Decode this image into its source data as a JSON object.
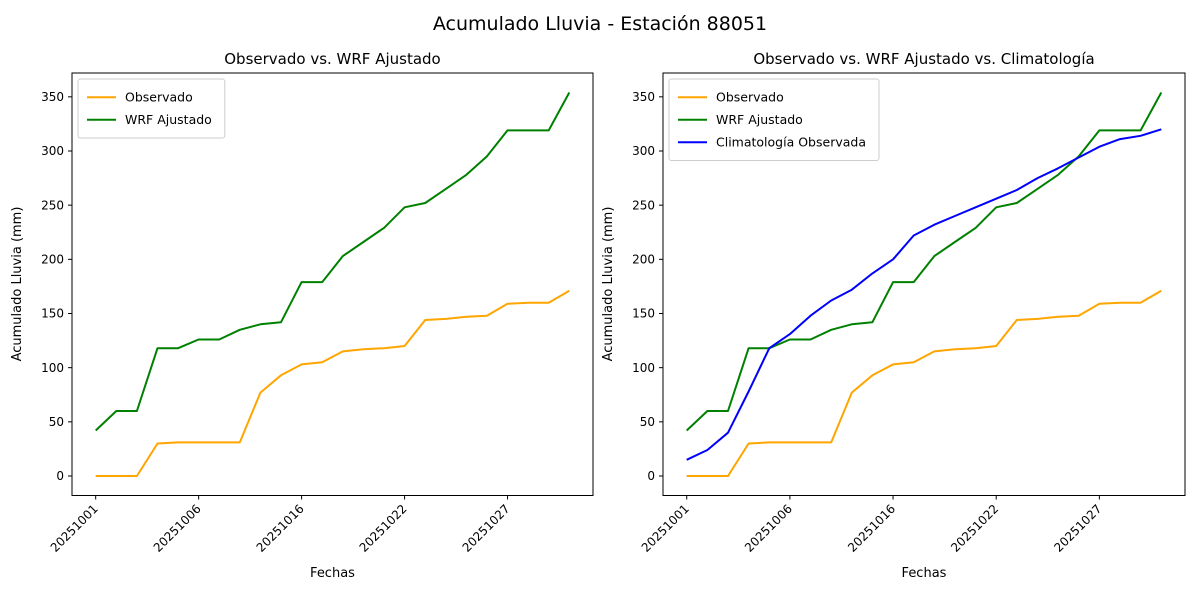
{
  "figure": {
    "title": "Acumulado Lluvia - Estación 88051",
    "background_color": "#ffffff"
  },
  "chart_data": [
    {
      "type": "line",
      "title": "Observado vs. WRF Ajustado",
      "xlabel": "Fechas",
      "ylabel": "Acumulado Lluvia (mm)",
      "n_points": 24,
      "x": [
        0,
        1,
        2,
        3,
        4,
        5,
        6,
        7,
        8,
        9,
        10,
        11,
        12,
        13,
        14,
        15,
        16,
        17,
        18,
        19,
        20,
        21,
        22,
        23
      ],
      "xticks": {
        "positions": [
          0,
          5,
          10,
          15,
          20
        ],
        "labels": [
          "20251001",
          "20251006",
          "20251016",
          "20251022",
          "20251027"
        ],
        "rotation": 45
      },
      "yticks": [
        0,
        50,
        100,
        150,
        200,
        250,
        300,
        350
      ],
      "xlim": [
        -1.15,
        24.15
      ],
      "ylim": [
        -18,
        372
      ],
      "grid": false,
      "legend_position": "upper left",
      "series": [
        {
          "name": "Observado",
          "color": "#FFA500",
          "values": [
            0,
            0,
            0,
            30,
            31,
            31,
            31,
            31,
            77,
            93,
            103,
            105,
            115,
            117,
            118,
            120,
            144,
            145,
            147,
            148,
            159,
            160,
            160,
            171
          ]
        },
        {
          "name": "WRF Ajustado",
          "color": "#008000",
          "values": [
            42,
            60,
            60,
            118,
            118,
            126,
            126,
            135,
            140,
            142,
            179,
            179,
            203,
            216,
            229,
            248,
            252,
            265,
            278,
            295,
            319,
            319,
            319,
            354
          ]
        }
      ]
    },
    {
      "type": "line",
      "title": "Observado vs. WRF Ajustado vs. Climatología",
      "xlabel": "Fechas",
      "ylabel": "Acumulado Lluvia (mm)",
      "n_points": 24,
      "x": [
        0,
        1,
        2,
        3,
        4,
        5,
        6,
        7,
        8,
        9,
        10,
        11,
        12,
        13,
        14,
        15,
        16,
        17,
        18,
        19,
        20,
        21,
        22,
        23
      ],
      "xticks": {
        "positions": [
          0,
          5,
          10,
          15,
          20
        ],
        "labels": [
          "20251001",
          "20251006",
          "20251016",
          "20251022",
          "20251027"
        ],
        "rotation": 45
      },
      "yticks": [
        0,
        50,
        100,
        150,
        200,
        250,
        300,
        350
      ],
      "xlim": [
        -1.15,
        24.15
      ],
      "ylim": [
        -18,
        372
      ],
      "grid": false,
      "legend_position": "upper left",
      "series": [
        {
          "name": "Observado",
          "color": "#FFA500",
          "values": [
            0,
            0,
            0,
            30,
            31,
            31,
            31,
            31,
            77,
            93,
            103,
            105,
            115,
            117,
            118,
            120,
            144,
            145,
            147,
            148,
            159,
            160,
            160,
            171
          ]
        },
        {
          "name": "WRF Ajustado",
          "color": "#008000",
          "values": [
            42,
            60,
            60,
            118,
            118,
            126,
            126,
            135,
            140,
            142,
            179,
            179,
            203,
            216,
            229,
            248,
            252,
            265,
            278,
            295,
            319,
            319,
            319,
            354
          ]
        },
        {
          "name": "Climatología Observada",
          "color": "#0000FF",
          "values": [
            15,
            24,
            40,
            78,
            118,
            131,
            148,
            162,
            172,
            187,
            200,
            222,
            232,
            240,
            248,
            256,
            264,
            275,
            284,
            294,
            304,
            311,
            314,
            320
          ]
        }
      ]
    }
  ]
}
